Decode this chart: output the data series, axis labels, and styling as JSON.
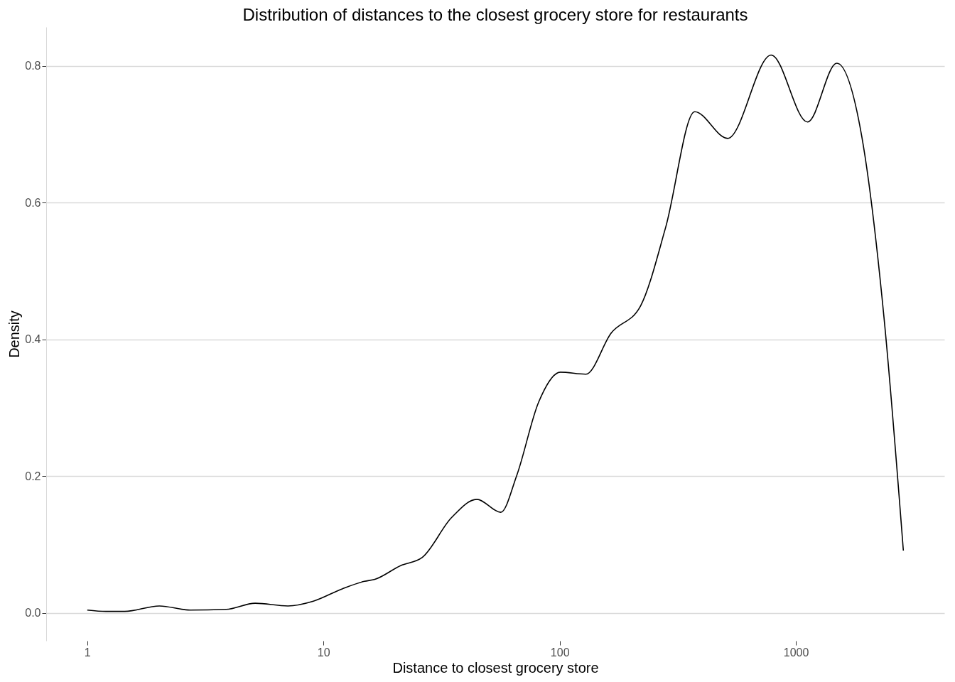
{
  "chart_data": {
    "type": "line",
    "title": "Distribution of distances to the closest grocery store for restaurants",
    "xlabel": "Distance to closest grocery store",
    "ylabel": "Density",
    "log": "x",
    "x": [
      1,
      1.2,
      1.44,
      2.02,
      2.72,
      3.87,
      5.14,
      7.07,
      9.06,
      12.0,
      14.9,
      16.5,
      21.2,
      26.2,
      34.8,
      44.6,
      56.3,
      65.8,
      81.4,
      100.7,
      129,
      165,
      220,
      281,
      373,
      514,
      786,
      1120,
      1490,
      1900,
      2360,
      2850
    ],
    "series": [
      {
        "color": "#000000",
        "values": [
          0.004,
          0.002,
          0.002,
          0.01,
          0.004,
          0.005,
          0.014,
          0.01,
          0.017,
          0.035,
          0.046,
          0.049,
          0.069,
          0.081,
          0.139,
          0.166,
          0.147,
          0.201,
          0.308,
          0.352,
          0.349,
          0.409,
          0.449,
          0.564,
          0.733,
          0.694,
          0.816,
          0.718,
          0.804,
          0.697,
          0.432,
          0.091
        ]
      }
    ],
    "xlim": [
      0.67,
      4250
    ],
    "xticks": [
      1,
      10,
      100,
      1000
    ],
    "ylim": [
      -0.041,
      0.857
    ],
    "yticks": [
      {
        "value": 0,
        "label": "0.0"
      },
      0.2,
      0.4,
      0.6,
      0.8
    ],
    "grid": "y",
    "marker": "none",
    "line_style": "solid"
  }
}
